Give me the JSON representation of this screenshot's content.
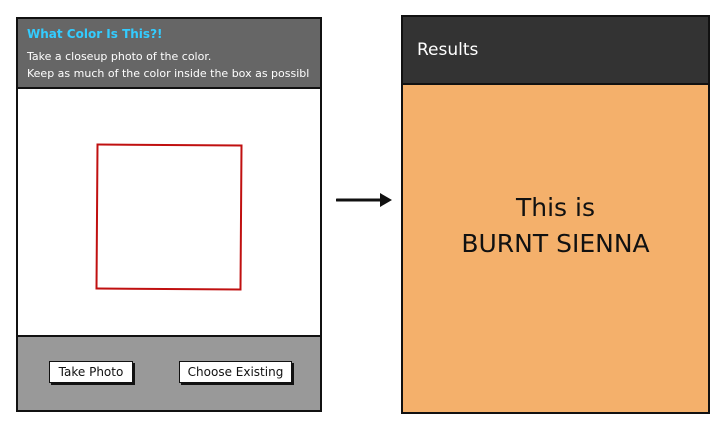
{
  "capture_screen": {
    "title": "What Color Is This?!",
    "instructions": [
      "Take a closeup photo of the color.",
      "Keep as much of the color inside the box as possibl"
    ],
    "buttons": {
      "take_photo": "Take Photo",
      "choose_existing": "Choose Existing"
    },
    "colors": {
      "header_bg": "#666666",
      "title": "#33ccff",
      "footer_bg": "#999999",
      "box_border": "#c01010"
    }
  },
  "results_screen": {
    "title": "Results",
    "line1": "This is",
    "line2": "BURNT SIENNA",
    "colors": {
      "header_bg": "#333333",
      "result_bg": "#f4b06b"
    }
  },
  "icons": {
    "flow_arrow": "right-arrow-icon"
  }
}
